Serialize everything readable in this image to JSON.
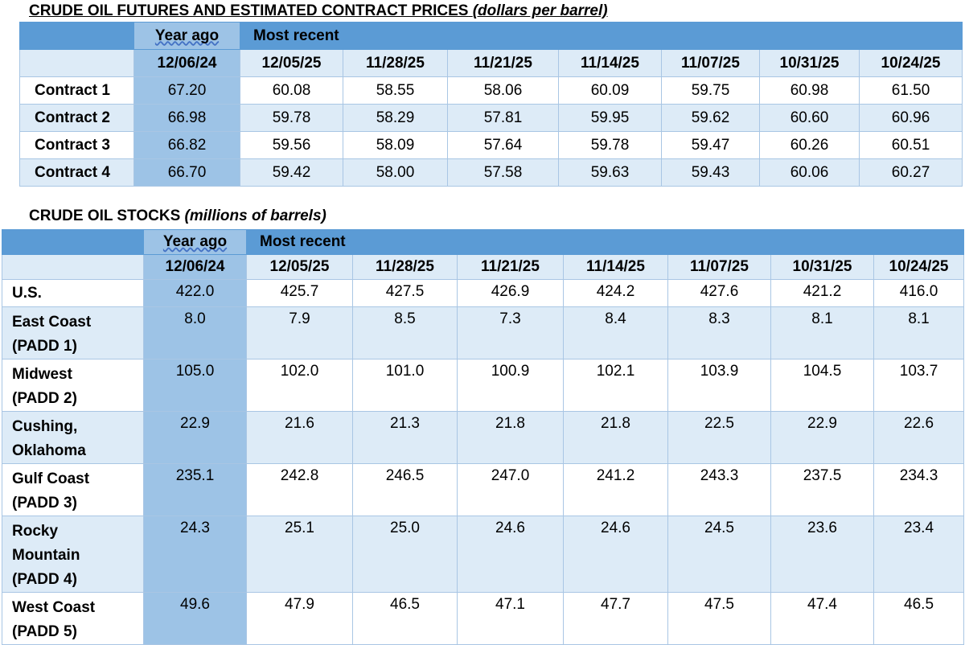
{
  "futures": {
    "title_main": "CRUDE OIL FUTURES AND ESTIMATED CONTRACT PRICES",
    "title_unit": "(dollars per barrel)",
    "year_ago_label": "Year ago",
    "most_recent_label": "Most recent",
    "dates": [
      "12/06/24",
      "12/05/25",
      "11/28/25",
      "11/21/25",
      "11/14/25",
      "11/07/25",
      "10/31/25",
      "10/24/25"
    ],
    "rows": [
      {
        "label": "Contract 1",
        "values": [
          "67.20",
          "60.08",
          "58.55",
          "58.06",
          "60.09",
          "59.75",
          "60.98",
          "61.50"
        ]
      },
      {
        "label": "Contract 2",
        "values": [
          "66.98",
          "59.78",
          "58.29",
          "57.81",
          "59.95",
          "59.62",
          "60.60",
          "60.96"
        ]
      },
      {
        "label": "Contract 3",
        "values": [
          "66.82",
          "59.56",
          "58.09",
          "57.64",
          "59.78",
          "59.47",
          "60.26",
          "60.51"
        ]
      },
      {
        "label": "Contract 4",
        "values": [
          "66.70",
          "59.42",
          "58.00",
          "57.58",
          "59.63",
          "59.43",
          "60.06",
          "60.27"
        ]
      }
    ]
  },
  "stocks": {
    "title_main": "CRUDE OIL STOCKS",
    "title_unit": "(millions of barrels)",
    "year_ago_label": "Year ago",
    "most_recent_label": "Most recent",
    "dates": [
      "12/06/24",
      "12/05/25",
      "11/28/25",
      "11/21/25",
      "11/14/25",
      "11/07/25",
      "10/31/25",
      "10/24/25"
    ],
    "rows": [
      {
        "label_lines": [
          "U.S."
        ],
        "values": [
          "422.0",
          "425.7",
          "427.5",
          "426.9",
          "424.2",
          "427.6",
          "421.2",
          "416.0"
        ]
      },
      {
        "label_lines": [
          "East Coast",
          "(PADD 1)"
        ],
        "values": [
          "8.0",
          "7.9",
          "8.5",
          "7.3",
          "8.4",
          "8.3",
          "8.1",
          "8.1"
        ]
      },
      {
        "label_lines": [
          "Midwest",
          "(PADD 2)"
        ],
        "values": [
          "105.0",
          "102.0",
          "101.0",
          "100.9",
          "102.1",
          "103.9",
          "104.5",
          "103.7"
        ]
      },
      {
        "label_lines": [
          "Cushing,",
          "Oklahoma"
        ],
        "values": [
          "22.9",
          "21.6",
          "21.3",
          "21.8",
          "21.8",
          "22.5",
          "22.9",
          "22.6"
        ]
      },
      {
        "label_lines": [
          "Gulf Coast",
          "(PADD 3)"
        ],
        "values": [
          "235.1",
          "242.8",
          "246.5",
          "247.0",
          "241.2",
          "243.3",
          "237.5",
          "234.3"
        ]
      },
      {
        "label_lines": [
          "Rocky",
          "Mountain",
          "(PADD 4)"
        ],
        "values": [
          "24.3",
          "25.1",
          "25.0",
          "24.6",
          "24.6",
          "24.5",
          "23.6",
          "23.4"
        ]
      },
      {
        "label_lines": [
          "West Coast",
          "(PADD 5)"
        ],
        "values": [
          "49.6",
          "47.9",
          "46.5",
          "47.1",
          "47.7",
          "47.5",
          "47.4",
          "46.5"
        ]
      }
    ]
  }
}
